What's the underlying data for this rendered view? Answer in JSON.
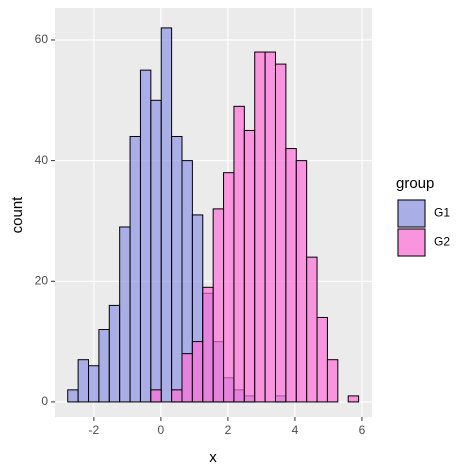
{
  "chart_data": {
    "type": "histogram",
    "x_label": "x",
    "y_label": "count",
    "bins": [
      -2.78,
      -2.47,
      -2.16,
      -1.85,
      -1.54,
      -1.23,
      -0.92,
      -0.61,
      -0.3,
      0.01,
      0.32,
      0.63,
      0.94,
      1.25,
      1.56,
      1.87,
      2.18,
      2.49,
      2.8,
      3.11,
      3.42,
      3.73,
      4.04,
      4.35,
      4.66,
      4.97,
      5.28,
      5.59,
      5.9
    ],
    "series": [
      {
        "name": "G1",
        "color": "#8d94e4",
        "values": [
          2,
          7,
          6,
          12,
          16,
          29,
          44,
          55,
          50,
          62,
          44,
          40,
          31,
          18,
          10,
          4,
          2,
          1,
          0,
          0,
          1,
          0,
          0,
          0,
          0,
          0,
          0,
          0
        ]
      },
      {
        "name": "G2",
        "color": "#ff6fd8",
        "values": [
          0,
          0,
          0,
          0,
          0,
          0,
          0,
          0,
          2,
          0,
          2,
          8,
          10,
          19,
          32,
          38,
          49,
          45,
          58,
          58,
          56,
          42,
          40,
          24,
          14,
          7,
          0,
          1
        ]
      }
    ],
    "legend_title": "group",
    "xlim": [
      -3.16,
      6.3
    ],
    "ylim": [
      -2.5,
      65.3
    ],
    "xticks": [
      -2,
      0,
      2,
      4,
      6
    ],
    "yticks": [
      0,
      20,
      40,
      60
    ],
    "grid": true
  }
}
